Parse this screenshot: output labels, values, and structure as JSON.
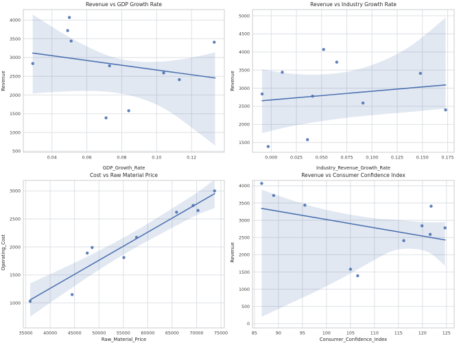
{
  "figure": {
    "background": "#ffffff",
    "rows": 2,
    "cols": 2
  },
  "style": {
    "point_color": "#4c72b0",
    "point_opacity": 0.9,
    "line_color": "#4c72b0",
    "band_color": "#4c72b0",
    "band_opacity": 0.16,
    "grid_color": "#dadde2",
    "spine_color": "#c9cccf",
    "text_color": "#262626",
    "tick_color": "#3c3c3c"
  },
  "chart_data": [
    {
      "type": "scatter",
      "title": "Revenue vs GDP Growth Rate",
      "xlabel": "GDP_Growth_Rate",
      "ylabel": "Revenue",
      "grid": true,
      "legend": false,
      "x": [
        0.029,
        0.049,
        0.05,
        0.051,
        0.071,
        0.073,
        0.084,
        0.104,
        0.113,
        0.133
      ],
      "y": [
        2840,
        3720,
        4070,
        3440,
        1390,
        2780,
        1580,
        2590,
        2410,
        3410
      ],
      "xlim": [
        0.0236,
        0.1388
      ],
      "ylim": [
        470,
        4280
      ],
      "xticks": [
        0.04,
        0.06,
        0.08,
        0.1,
        0.12
      ],
      "xtick_labels": [
        "0.04",
        "0.06",
        "0.08",
        "0.10",
        "0.12"
      ],
      "yticks": [
        500,
        1000,
        1500,
        2000,
        2500,
        3000,
        3500,
        4000
      ],
      "ytick_labels": [
        "500",
        "1000",
        "1500",
        "2000",
        "2500",
        "3000",
        "3500",
        "4000"
      ],
      "regression_line": {
        "x": [
          0.029,
          0.1335
        ],
        "y": [
          3120,
          2455
        ]
      },
      "ci_band": {
        "x": [
          0.029,
          0.045,
          0.06,
          0.075,
          0.09,
          0.105,
          0.12,
          0.1335
        ],
        "lower": [
          2040,
          2090,
          2110,
          2070,
          1920,
          1620,
          1130,
          650
        ],
        "upper": [
          4150,
          3680,
          3300,
          3010,
          2890,
          2900,
          3000,
          3140
        ]
      }
    },
    {
      "type": "scatter",
      "title": "Revenue vs Industry Growth Rate",
      "xlabel": "Industry_Revenue_Growth_Rate",
      "ylabel": "Revenue",
      "grid": true,
      "legend": false,
      "x": [
        -0.009,
        0.065,
        0.052,
        0.011,
        -0.003,
        0.041,
        0.036,
        0.091,
        0.173,
        0.148
      ],
      "y": [
        2840,
        3720,
        4070,
        3440,
        1390,
        2780,
        1580,
        2590,
        2400,
        3410
      ],
      "xlim": [
        -0.0185,
        0.1815
      ],
      "ylim": [
        1230,
        5170
      ],
      "xticks": [
        0,
        0.025,
        0.05,
        0.075,
        0.1,
        0.125,
        0.15,
        0.175
      ],
      "xtick_labels": [
        "0.000",
        "0.025",
        "0.050",
        "0.075",
        "0.100",
        "0.125",
        "0.150",
        "0.175"
      ],
      "yticks": [
        1500,
        2000,
        2500,
        3000,
        3500,
        4000,
        4500,
        5000
      ],
      "ytick_labels": [
        "1500",
        "2000",
        "2500",
        "3000",
        "3500",
        "4000",
        "4500",
        "5000"
      ],
      "regression_line": {
        "x": [
          -0.009,
          0.173
        ],
        "y": [
          2655,
          3090
        ]
      },
      "ci_band": {
        "x": [
          -0.009,
          0.02,
          0.05,
          0.08,
          0.11,
          0.14,
          0.173
        ],
        "lower": [
          1760,
          1950,
          2090,
          2200,
          2280,
          2350,
          2440
        ],
        "upper": [
          3520,
          3400,
          3380,
          3480,
          3750,
          4200,
          4950
        ]
      }
    },
    {
      "type": "scatter",
      "title": "Cost vs Raw Material Price",
      "xlabel": "Raw_Material_Price",
      "ylabel": "Operating_Cost",
      "grid": true,
      "legend": false,
      "x": [
        35900,
        44500,
        47600,
        48600,
        55100,
        57700,
        65900,
        69300,
        70300,
        73700
      ],
      "y": [
        1030,
        1150,
        1890,
        1990,
        1810,
        2170,
        2620,
        2740,
        2650,
        3000
      ],
      "xlim": [
        34500,
        75700
      ],
      "ylim": [
        555,
        3187
      ],
      "xticks": [
        35000,
        40000,
        45000,
        50000,
        55000,
        60000,
        65000,
        70000,
        75000
      ],
      "xtick_labels": [
        "35000",
        "40000",
        "45000",
        "50000",
        "55000",
        "60000",
        "65000",
        "70000",
        "75000"
      ],
      "yticks": [
        1000,
        1500,
        2000,
        2500,
        3000
      ],
      "ytick_labels": [
        "1000",
        "1500",
        "2000",
        "2500",
        "3000"
      ],
      "regression_line": {
        "x": [
          35900,
          73700
        ],
        "y": [
          1055,
          2950
        ]
      },
      "ci_band": {
        "x": [
          35900,
          41000,
          46000,
          51000,
          56860,
          62000,
          67000,
          70500,
          73700
        ],
        "lower": [
          755,
          1064,
          1360,
          1646,
          1957,
          2201,
          2433,
          2587,
          2695
        ],
        "upper": [
          1351,
          1554,
          1760,
          1976,
          2253,
          2525,
          2795,
          2993,
          3205
        ]
      }
    },
    {
      "type": "scatter",
      "title": "Revenue vs Consumer Confidence Index",
      "xlabel": "Consumer_Confidence_Index",
      "ylabel": "Revenue",
      "grid": true,
      "legend": false,
      "x": [
        119.9,
        89.0,
        86.5,
        95.5,
        106.5,
        124.7,
        105.0,
        121.6,
        116.1,
        121.8
      ],
      "y": [
        2840,
        3720,
        4070,
        3440,
        1390,
        2780,
        1580,
        2590,
        2410,
        3410
      ],
      "xlim": [
        84.6,
        126.6
      ],
      "ylim": [
        -123,
        4157
      ],
      "xticks": [
        85,
        90,
        95,
        100,
        105,
        110,
        115,
        120,
        125
      ],
      "xtick_labels": [
        "85",
        "90",
        "95",
        "100",
        "105",
        "110",
        "115",
        "120",
        "125"
      ],
      "yticks": [
        0,
        500,
        1000,
        1500,
        2000,
        2500,
        3000,
        3500,
        4000
      ],
      "ytick_labels": [
        "0",
        "500",
        "1000",
        "1500",
        "2000",
        "2500",
        "3000",
        "3500",
        "4000"
      ],
      "regression_line": {
        "x": [
          86.5,
          124.7
        ],
        "y": [
          3345,
          2430
        ]
      },
      "ci_band": {
        "x": [
          86.5,
          92,
          98,
          104,
          110,
          114,
          118,
          121.5,
          124.7
        ],
        "lower": [
          200,
          560,
          950,
          1380,
          1850,
          2120,
          2170,
          2050,
          1680
        ],
        "upper": [
          3890,
          3620,
          3370,
          3190,
          3060,
          3020,
          2970,
          2940,
          2950
        ]
      }
    }
  ]
}
